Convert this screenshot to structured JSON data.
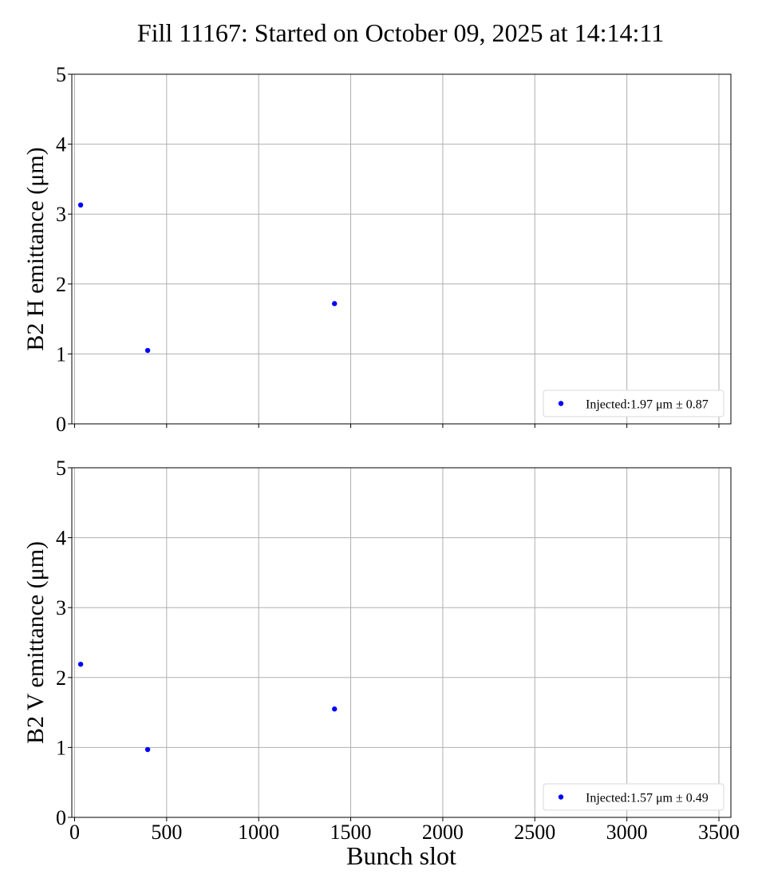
{
  "figure": {
    "title": "Fill 11167: Started on October 09, 2025 at 14:14:11",
    "xlabel": "Bunch slot"
  },
  "style": {
    "marker_color": "#0000ff",
    "grid_color": "#b0b0b0",
    "axis_color": "#000000"
  },
  "chart_data": [
    {
      "type": "scatter",
      "ylabel": "B2 H emittance (μm)",
      "xlim": [
        -15,
        3565
      ],
      "ylim": [
        0,
        5
      ],
      "xticks": [
        0,
        500,
        1000,
        1500,
        2000,
        2500,
        3000,
        3500
      ],
      "xtick_labels_shown": false,
      "yticks": [
        0,
        1,
        2,
        3,
        4,
        5
      ],
      "grid": true,
      "legend_position": "lower-right",
      "series": [
        {
          "name": "Injected:1.97 μm ± 0.87",
          "points": [
            {
              "x": 33,
              "y": 3.13
            },
            {
              "x": 397,
              "y": 1.05
            },
            {
              "x": 1412,
              "y": 1.72
            }
          ]
        }
      ]
    },
    {
      "type": "scatter",
      "ylabel": "B2 V emittance (μm)",
      "xlim": [
        -15,
        3565
      ],
      "ylim": [
        0,
        5
      ],
      "xticks": [
        0,
        500,
        1000,
        1500,
        2000,
        2500,
        3000,
        3500
      ],
      "xtick_labels_shown": true,
      "yticks": [
        0,
        1,
        2,
        3,
        4,
        5
      ],
      "grid": true,
      "legend_position": "lower-right",
      "series": [
        {
          "name": "Injected:1.57 μm ± 0.49",
          "points": [
            {
              "x": 33,
              "y": 2.19
            },
            {
              "x": 397,
              "y": 0.97
            },
            {
              "x": 1412,
              "y": 1.55
            }
          ]
        }
      ]
    }
  ]
}
